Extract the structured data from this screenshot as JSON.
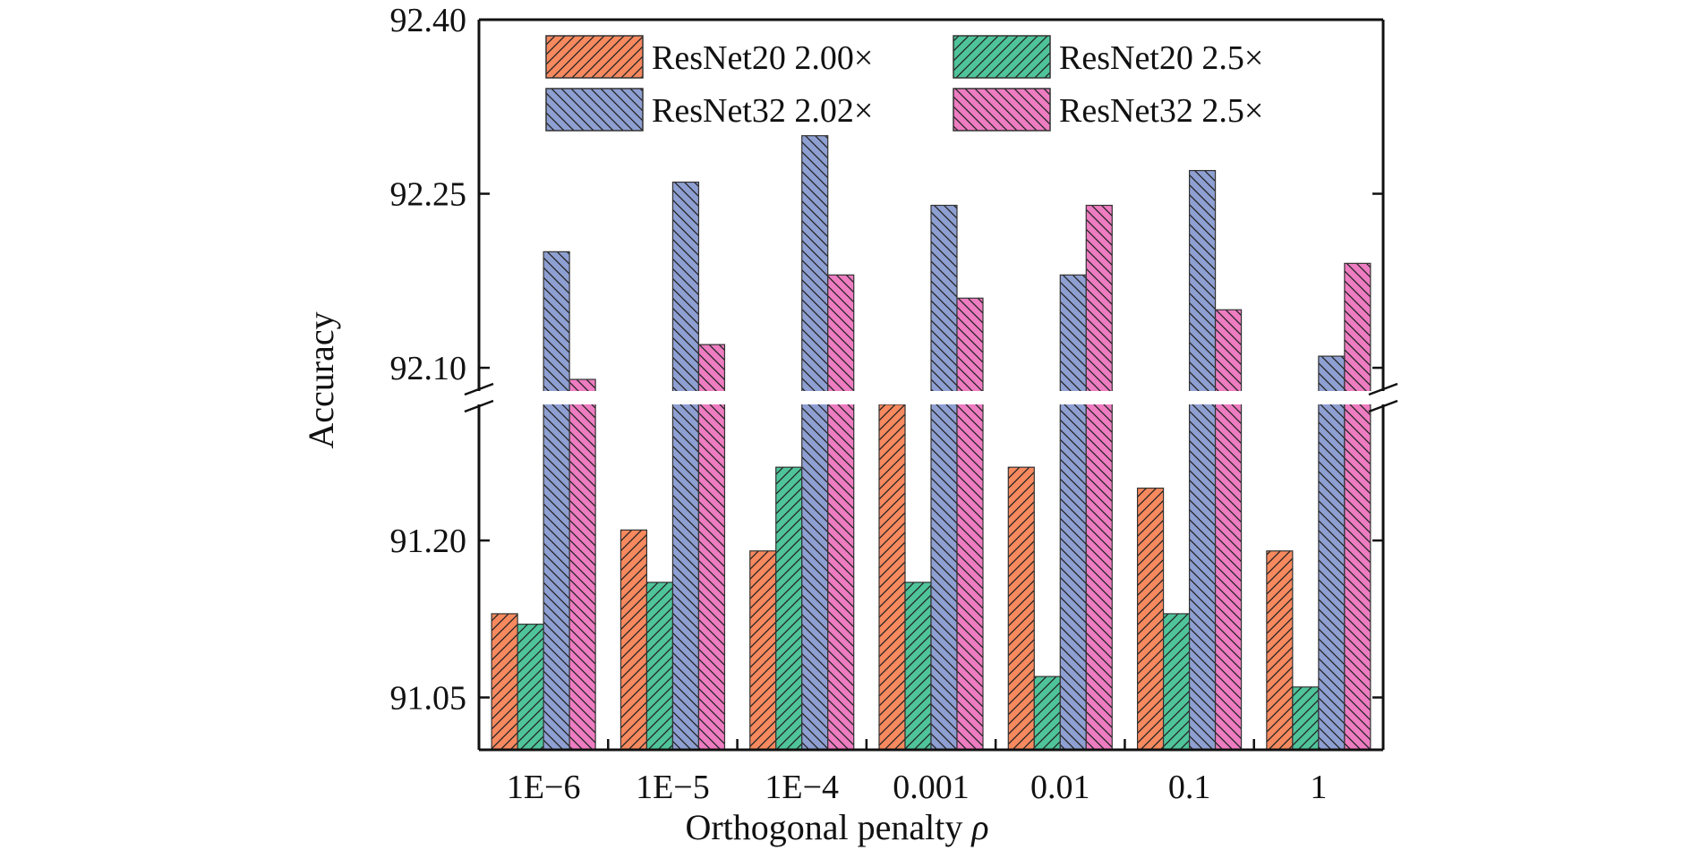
{
  "chart_data": {
    "type": "bar",
    "title": "",
    "xlabel": "Orthogonal penalty ",
    "xlabel_symbol": "ρ",
    "ylabel": "Accuracy",
    "categories": [
      "1E−6",
      "1E−5",
      "1E−4",
      "0.001",
      "0.01",
      "0.1",
      "1"
    ],
    "axis_break": {
      "lower": [
        91.0,
        91.33
      ],
      "upper": [
        92.08,
        92.4
      ]
    },
    "lower_ticks": [
      "91.05",
      "91.20"
    ],
    "upper_ticks": [
      "92.10",
      "92.25",
      "92.40"
    ],
    "legend_position": "top-center",
    "grid": false,
    "series": [
      {
        "name": "ResNet20 2.00×",
        "color": "#F7895F",
        "hatch": "fwd",
        "values": [
          91.13,
          91.21,
          91.19,
          91.36,
          91.27,
          91.25,
          91.19
        ]
      },
      {
        "name": "ResNet20 2.5×",
        "color": "#4FC49B",
        "hatch": "fwd",
        "values": [
          91.12,
          91.16,
          91.27,
          91.16,
          91.07,
          91.13,
          91.06
        ]
      },
      {
        "name": "ResNet32 2.02×",
        "color": "#8E9FD2",
        "hatch": "back",
        "values": [
          92.2,
          92.26,
          92.3,
          92.24,
          92.18,
          92.27,
          92.11
        ]
      },
      {
        "name": "ResNet32 2.5×",
        "color": "#EE7CC1",
        "hatch": "back",
        "values": [
          92.09,
          92.12,
          92.18,
          92.16,
          92.24,
          92.15,
          92.19
        ]
      }
    ]
  }
}
